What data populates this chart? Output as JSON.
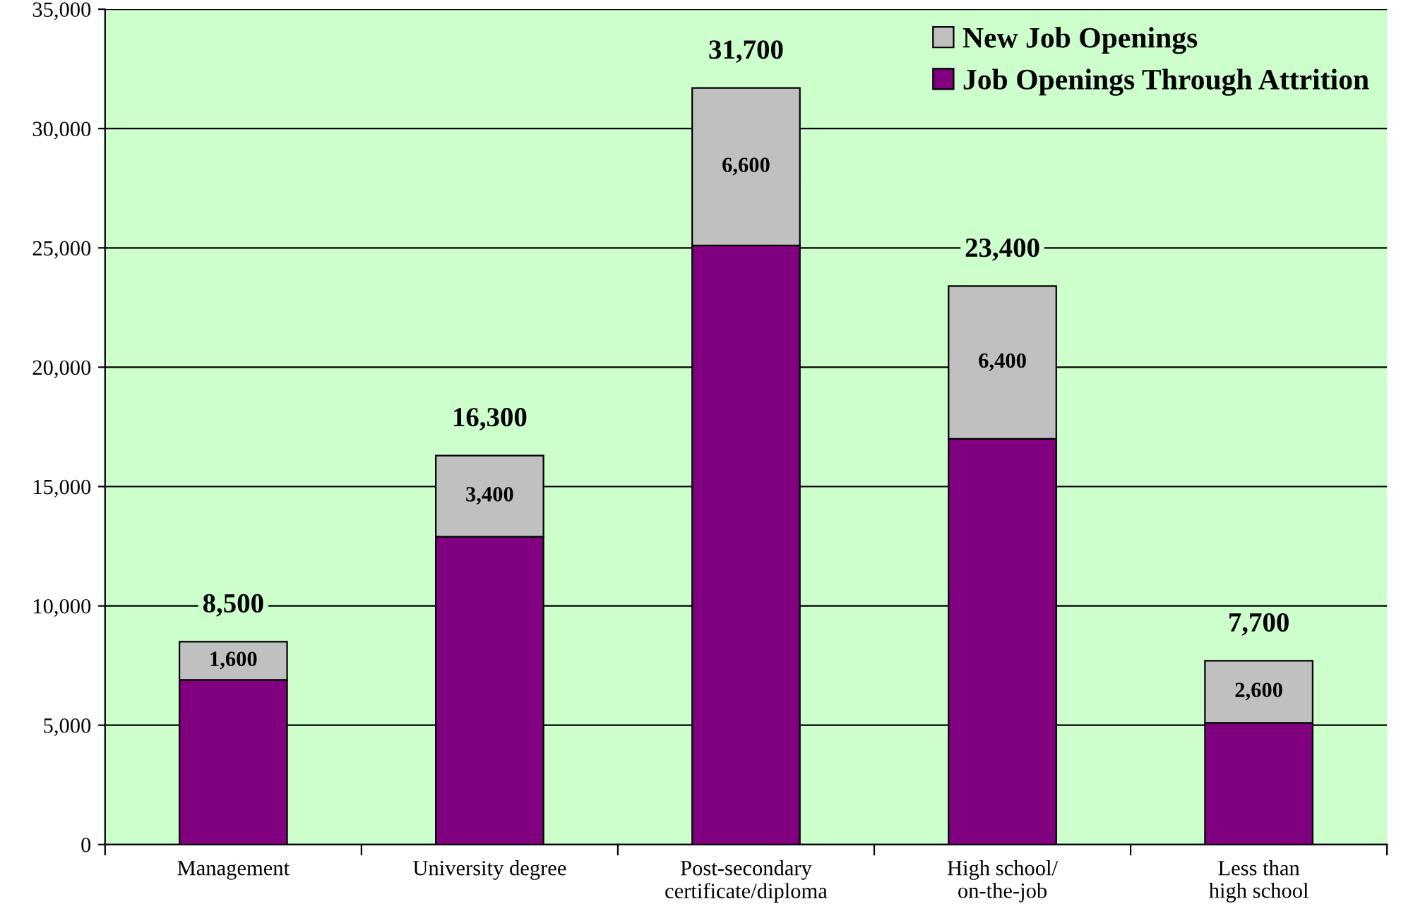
{
  "chart_data": {
    "type": "bar",
    "stacked": true,
    "categories": [
      "Management",
      "University degree",
      "Post-secondary\ncertificate/diploma",
      "High school/\non-the-job",
      "Less than\nhigh school"
    ],
    "series": [
      {
        "name": "Job Openings Through Attrition",
        "color": "#800080",
        "values": [
          6900,
          12900,
          25100,
          17000,
          5100
        ]
      },
      {
        "name": "New Job Openings",
        "color": "#c0c0c0",
        "values": [
          1600,
          3400,
          6600,
          6400,
          2600
        ],
        "value_labels": [
          "1,600",
          "3,400",
          "6,600",
          "6,400",
          "2,600"
        ]
      }
    ],
    "totals": [
      "8,500",
      "16,300",
      "31,700",
      "23,400",
      "7,700"
    ],
    "ylim": [
      0,
      35000
    ],
    "yticks": [
      0,
      {
        "value": 5000,
        "label": "5,000"
      },
      {
        "value": 10000,
        "label": "10,000"
      },
      {
        "value": 15000,
        "label": "15,000"
      },
      {
        "value": 20000,
        "label": "20,000"
      },
      {
        "value": 25000,
        "label": "25,000"
      },
      {
        "value": 30000,
        "label": "30,000"
      },
      {
        "value": 35000,
        "label": "35,000"
      }
    ],
    "grid": "y",
    "legend": "top right"
  }
}
